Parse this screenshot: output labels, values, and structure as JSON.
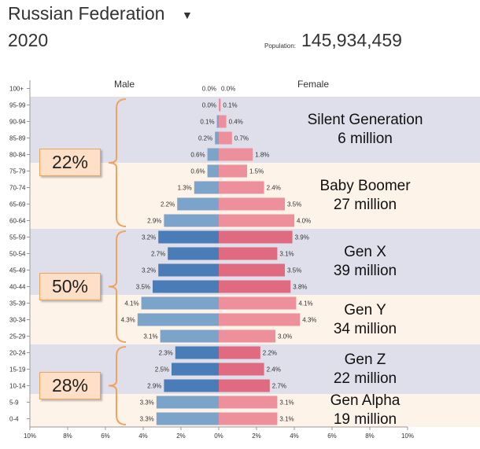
{
  "header": {
    "country": "Russian Federation",
    "year": "2020",
    "population_label": "Population:",
    "population_value": "145,934,459"
  },
  "chart_data": {
    "type": "bar",
    "subtype": "population-pyramid",
    "xlabel_left": "Male",
    "xlabel_right": "Female",
    "categories": [
      "100+",
      "95-99",
      "90-94",
      "85-89",
      "80-84",
      "75-79",
      "70-74",
      "65-69",
      "60-64",
      "55-59",
      "50-54",
      "45-49",
      "40-44",
      "35-39",
      "30-34",
      "25-29",
      "20-24",
      "15-19",
      "10-14",
      "5-9",
      "0-4"
    ],
    "series": [
      {
        "name": "Male",
        "color": "#4a7cb8",
        "values": [
          0.0,
          0.0,
          0.1,
          0.2,
          0.6,
          0.6,
          1.3,
          2.2,
          2.9,
          3.2,
          2.7,
          3.2,
          3.5,
          4.1,
          4.3,
          3.1,
          2.3,
          2.5,
          2.9,
          3.3,
          3.3
        ]
      },
      {
        "name": "Female",
        "color": "#ee6f80",
        "values": [
          0.0,
          0.1,
          0.4,
          0.7,
          1.8,
          1.5,
          2.4,
          3.5,
          4.0,
          3.9,
          3.1,
          3.5,
          3.8,
          4.1,
          4.3,
          3.0,
          2.2,
          2.4,
          2.7,
          3.1,
          3.1
        ]
      }
    ],
    "value_labels": {
      "male": [
        "0.0%",
        "0.0%",
        "0.1%",
        "0.2%",
        "0.6%",
        "0.6%",
        "1.3%",
        "2.2%",
        "2.9%",
        "3.2%",
        "2.7%",
        "3.2%",
        "3.5%",
        "4.1%",
        "4.3%",
        "3.1%",
        "2.3%",
        "2.5%",
        "2.9%",
        "3.3%",
        "3.3%"
      ],
      "female": [
        "0.0%",
        "0.1%",
        "0.4%",
        "0.7%",
        "1.8%",
        "1.5%",
        "2.4%",
        "3.5%",
        "4.0%",
        "3.9%",
        "3.1%",
        "3.5%",
        "3.8%",
        "4.1%",
        "4.3%",
        "3.0%",
        "2.2%",
        "2.4%",
        "2.7%",
        "3.1%",
        "3.1%"
      ]
    },
    "xlim": [
      -10,
      10
    ],
    "x_ticks": [
      "10%",
      "8%",
      "6%",
      "4%",
      "2%",
      "0%",
      "2%",
      "4%",
      "6%",
      "8%",
      "10%"
    ],
    "generations": [
      {
        "name": "Silent Generation",
        "amount": "6 million",
        "from": "95-99",
        "to": "80-84",
        "band": "#dedfeb"
      },
      {
        "name": "Baby Boomer",
        "amount": "27 million",
        "from": "75-79",
        "to": "60-64",
        "band": "#fef3e9"
      },
      {
        "name": "Gen X",
        "amount": "39 million",
        "from": "55-59",
        "to": "40-44",
        "band": "#dedfeb"
      },
      {
        "name": "Gen Y",
        "amount": "34 million",
        "from": "35-39",
        "to": "25-29",
        "band": "#fef3e9"
      },
      {
        "name": "Gen Z",
        "amount": "22 million",
        "from": "20-24",
        "to": "10-14",
        "band": "#dedfeb"
      },
      {
        "name": "Gen Alpha",
        "amount": "19 million",
        "from": "5-9",
        "to": "0-4",
        "band": "#fef3e9"
      }
    ],
    "groups": [
      {
        "percent": "22%",
        "from": "95-99",
        "to": "60-64"
      },
      {
        "percent": "50%",
        "from": "55-59",
        "to": "25-29"
      },
      {
        "percent": "28%",
        "from": "20-24",
        "to": "0-4"
      }
    ],
    "colors": {
      "male_light": "#7ca3c9",
      "male_dark": "#4a7cb8",
      "female_light": "#ee8f9c",
      "female_dark": "#e06a80",
      "bracket": "#f0a35e"
    }
  }
}
